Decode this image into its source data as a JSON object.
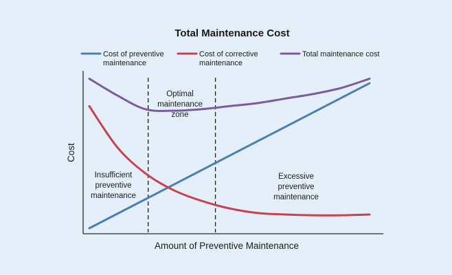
{
  "chart_data": {
    "type": "line",
    "title": "Total Maintenance Cost",
    "xlabel": "Amount of Preventive Maintenance",
    "ylabel": "Cost",
    "grid": false,
    "legend_placement": "top",
    "series": [
      {
        "name": [
          "Cost of preventive",
          "maintenance"
        ],
        "color": "#4a7fb5",
        "x": [
          0,
          1
        ],
        "y": [
          0,
          0.95
        ]
      },
      {
        "name": [
          "Cost of corrective",
          "maintenance"
        ],
        "color": "#c8414e",
        "x": [
          0,
          0.1,
          0.2,
          0.3,
          0.4,
          0.5,
          0.6,
          0.7,
          0.8,
          0.9,
          1.0
        ],
        "y": [
          0.8,
          0.53,
          0.36,
          0.25,
          0.18,
          0.13,
          0.1,
          0.09,
          0.085,
          0.085,
          0.09
        ]
      },
      {
        "name": [
          "Total maintenance cost"
        ],
        "color": "#7c5a9e",
        "x": [
          0,
          0.1,
          0.2,
          0.3,
          0.4,
          0.5,
          0.6,
          0.7,
          0.8,
          0.9,
          1.0
        ],
        "y": [
          0.98,
          0.87,
          0.78,
          0.77,
          0.78,
          0.8,
          0.82,
          0.85,
          0.88,
          0.92,
          0.98
        ]
      }
    ],
    "zone_bounds": [
      0.21,
      0.45
    ],
    "annotations": {
      "insufficient": [
        "Insufficient",
        "preventive",
        "maintenance"
      ],
      "optimal": [
        "Optimal",
        "maintenance",
        "zone"
      ],
      "excessive": [
        "Excessive",
        "preventive",
        "maintenance"
      ]
    }
  }
}
